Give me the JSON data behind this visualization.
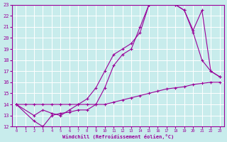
{
  "xlabel": "Windchill (Refroidissement éolien,°C)",
  "bg_color": "#c8ecec",
  "line_color": "#990099",
  "grid_color": "#ffffff",
  "xlim": [
    -0.5,
    23.5
  ],
  "ylim": [
    12,
    23
  ],
  "xticks": [
    0,
    1,
    2,
    3,
    4,
    5,
    6,
    7,
    8,
    9,
    10,
    11,
    12,
    13,
    14,
    15,
    16,
    17,
    18,
    19,
    20,
    21,
    22,
    23
  ],
  "yticks": [
    12,
    13,
    14,
    15,
    16,
    17,
    18,
    19,
    20,
    21,
    22,
    23
  ],
  "line1_x": [
    0,
    1,
    2,
    3,
    4,
    5,
    6,
    7,
    8,
    9,
    10,
    11,
    12,
    13,
    14,
    15,
    16,
    17,
    18,
    19,
    20,
    21,
    22,
    23
  ],
  "line1_y": [
    14.0,
    14.0,
    14.0,
    14.0,
    14.0,
    14.0,
    14.0,
    14.0,
    14.0,
    14.0,
    14.0,
    14.2,
    14.4,
    14.6,
    14.8,
    15.0,
    15.2,
    15.4,
    15.5,
    15.6,
    15.8,
    15.9,
    16.0,
    16.0
  ],
  "line2_x": [
    0,
    2,
    3,
    4,
    5,
    6,
    7,
    8,
    9,
    10,
    11,
    12,
    13,
    14,
    15,
    16,
    17,
    18,
    19,
    20,
    21,
    22,
    23
  ],
  "line2_y": [
    14.0,
    12.5,
    12.0,
    13.0,
    13.2,
    13.3,
    13.5,
    13.5,
    14.0,
    15.5,
    17.5,
    18.5,
    19.0,
    21.0,
    23.0,
    23.2,
    23.2,
    23.0,
    22.5,
    20.5,
    18.0,
    17.0,
    16.5
  ],
  "line3_x": [
    0,
    2,
    3,
    4,
    5,
    6,
    7,
    8,
    9,
    10,
    11,
    12,
    13,
    14,
    15,
    16,
    17,
    18,
    19,
    20,
    21,
    22,
    23
  ],
  "line3_y": [
    14.0,
    13.0,
    13.5,
    13.2,
    13.0,
    13.5,
    14.0,
    14.5,
    15.5,
    17.0,
    18.5,
    19.0,
    19.5,
    20.5,
    23.0,
    23.2,
    23.2,
    23.0,
    22.5,
    20.7,
    22.5,
    17.0,
    16.5
  ]
}
